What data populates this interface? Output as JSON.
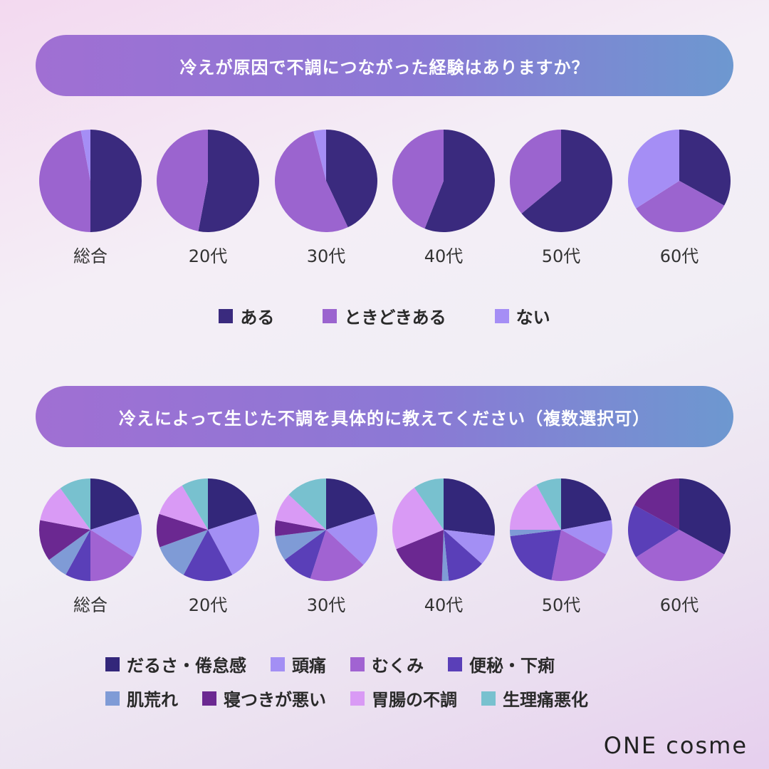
{
  "section1": {
    "title": "冷えが原因で不調につながった経験はありますか？",
    "legend": [
      {
        "label": "ある",
        "color": "#3a2a7e"
      },
      {
        "label": "ときどきある",
        "color": "#9b64cf"
      },
      {
        "label": "ない",
        "color": "#a58ef5"
      }
    ]
  },
  "section2": {
    "title": "冷えによって生じた不調を具体的に教えてください（複数選択可）",
    "legend_row1": [
      {
        "label": "だるさ・倦怠感",
        "color": "#33277a"
      },
      {
        "label": "頭痛",
        "color": "#a38ff4"
      },
      {
        "label": "むくみ",
        "color": "#a163d2"
      },
      {
        "label": "便秘・下痢",
        "color": "#5a3fb8"
      }
    ],
    "legend_row2": [
      {
        "label": "肌荒れ",
        "color": "#7f9bd6"
      },
      {
        "label": "寝つきが悪い",
        "color": "#6b2891"
      },
      {
        "label": "胃腸の不調",
        "color": "#d99af5"
      },
      {
        "label": "生理痛悪化",
        "color": "#78c1cf"
      }
    ]
  },
  "logo": "ONE cosme",
  "chart_data": [
    {
      "type": "pie",
      "title": "冷えが原因で不調につながった経験はありますか？",
      "categories": [
        "総合",
        "20代",
        "30代",
        "40代",
        "50代",
        "60代"
      ],
      "series_labels": [
        "ある",
        "ときどきある",
        "ない"
      ],
      "colors": [
        "#3a2a7e",
        "#9b64cf",
        "#a58ef5"
      ],
      "values": [
        [
          50,
          47,
          3
        ],
        [
          53,
          47,
          0
        ],
        [
          43,
          53,
          4
        ],
        [
          56,
          44,
          0
        ],
        [
          64,
          36,
          0
        ],
        [
          33,
          33,
          34
        ]
      ]
    },
    {
      "type": "pie",
      "title": "冷えによって生じた不調を具体的に教えてください（複数選択可）",
      "categories": [
        "総合",
        "20代",
        "30代",
        "40代",
        "50代",
        "60代"
      ],
      "series_labels": [
        "だるさ・倦怠感",
        "頭痛",
        "むくみ",
        "便秘・下痢",
        "肌荒れ",
        "寝つきが悪い",
        "胃腸の不調",
        "生理痛悪化"
      ],
      "colors": [
        "#33277a",
        "#a38ff4",
        "#a163d2",
        "#5a3fb8",
        "#7f9bd6",
        "#6b2891",
        "#d99af5",
        "#78c1cf"
      ],
      "values": [
        [
          20,
          14,
          16,
          8,
          7,
          13,
          12,
          10
        ],
        [
          19,
          21,
          0,
          15,
          11,
          10,
          11,
          8
        ],
        [
          20,
          17,
          18,
          10,
          8,
          5,
          9,
          13
        ],
        [
          25,
          9,
          0,
          11,
          2,
          17,
          20,
          9
        ],
        [
          22,
          11,
          20,
          20,
          2,
          0,
          17,
          8
        ],
        [
          33,
          0,
          33,
          17,
          0,
          17,
          0,
          0
        ]
      ]
    }
  ]
}
